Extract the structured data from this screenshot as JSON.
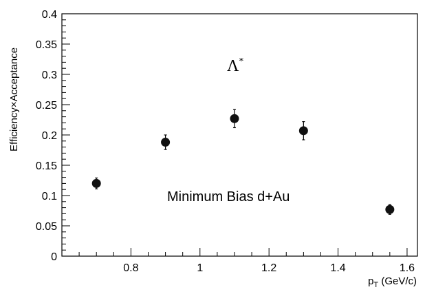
{
  "chart_data": {
    "type": "scatter",
    "xlabel": "p",
    "xlabel_subscript": "T",
    "xlabel_unit": " (GeV/c)",
    "ylabel": "Efficiency×Acceptance",
    "xlim": [
      0.6,
      1.63
    ],
    "ylim": [
      0,
      0.4
    ],
    "x_ticks": [
      0.8,
      1.0,
      1.2,
      1.4,
      1.6
    ],
    "x_tick_labels": [
      "0.8",
      "1",
      "1.2",
      "1.4",
      "1.6"
    ],
    "y_ticks": [
      0,
      0.05,
      0.1,
      0.15,
      0.2,
      0.25,
      0.3,
      0.35,
      0.4
    ],
    "y_tick_labels": [
      "0",
      "0.05",
      "0.1",
      "0.15",
      "0.2",
      "0.25",
      "0.3",
      "0.35",
      "0.4"
    ],
    "grid": false,
    "series": [
      {
        "x": [
          0.7,
          0.9,
          1.1,
          1.3,
          1.55
        ],
        "y": [
          0.12,
          0.188,
          0.227,
          0.207,
          0.077
        ],
        "yerr": [
          0.009,
          0.012,
          0.015,
          0.015,
          0.008
        ]
      }
    ],
    "annotations": {
      "particle": "Λ",
      "particle_sup": "*",
      "label": "Minimum Bias d+Au"
    }
  }
}
